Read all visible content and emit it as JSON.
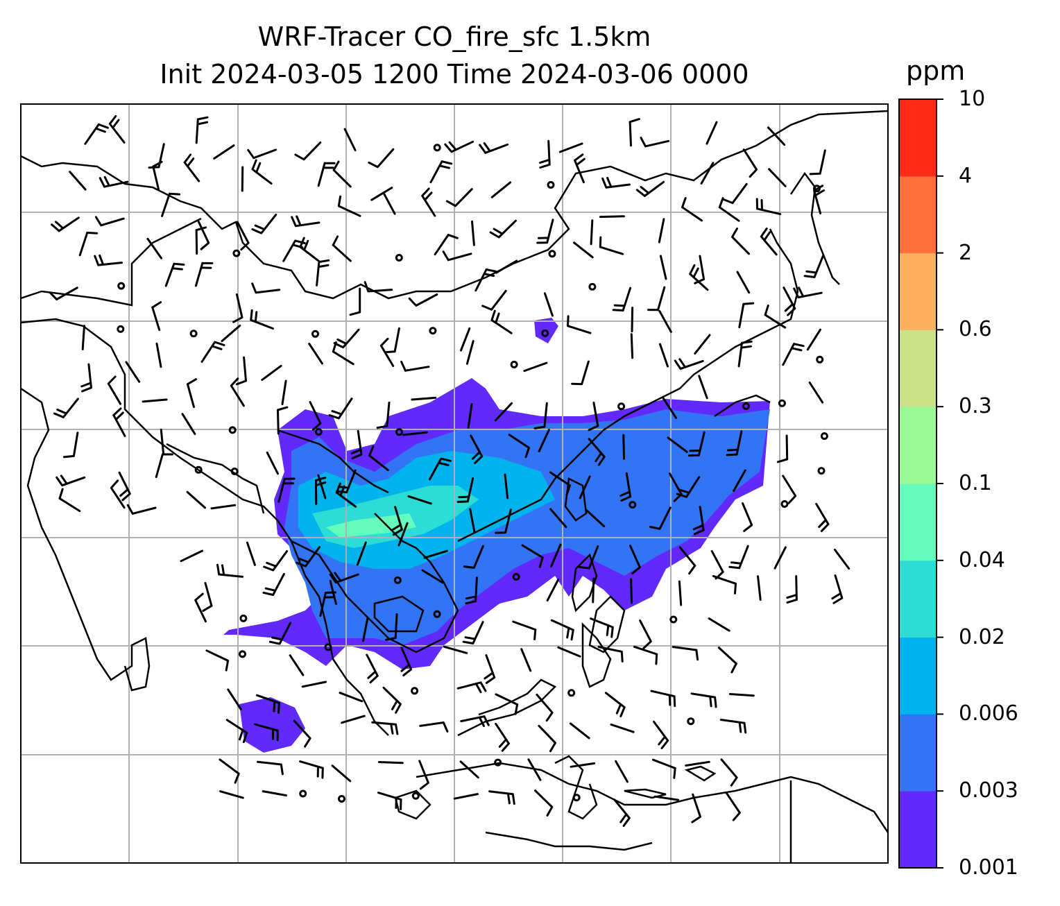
{
  "title_line1": "WRF-Tracer CO_fire_sfc 1.5km",
  "title_line2": "Init 2024-03-05 1200 Time 2024-03-06 0000",
  "colorbar": {
    "unit": "ppm",
    "levels": [
      "0.001",
      "0.003",
      "0.006",
      "0.02",
      "0.04",
      "0.1",
      "0.3",
      "0.6",
      "2",
      "4",
      "10"
    ],
    "colors": [
      "#6229fb",
      "#3274f4",
      "#00b3ec",
      "#2ddcd4",
      "#64fbbd",
      "#99fa96",
      "#cce087",
      "#feb060",
      "#ff6f3b",
      "#ff2a18"
    ]
  },
  "map": {
    "projection": "Regional map",
    "features": [
      "coastlines",
      "country borders",
      "lat/lon gridlines",
      "wind barbs",
      "calm-wind circles",
      "CO tracer shading"
    ]
  }
}
